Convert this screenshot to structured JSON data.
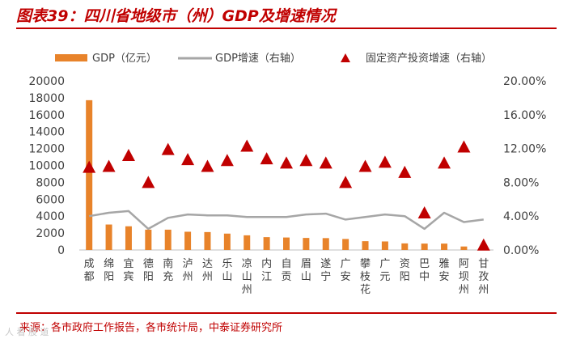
{
  "header": {
    "title": "图表39：四川省地级市（州）GDP及增速情况"
  },
  "footer": {
    "source": "来源：各市政府工作报告，各市统计局，中泰证券研究所",
    "watermark": "人 看 股 道"
  },
  "colors": {
    "bar": "#e8832a",
    "line": "#a6a6a6",
    "triangle": "#c00000",
    "accent": "#c00000",
    "axis": "#bfbfbf",
    "text": "#404040"
  },
  "chart_data": {
    "type": "bar",
    "categories": [
      "成都",
      "绵阳",
      "宜宾",
      "德阳",
      "南充",
      "泸州",
      "达州",
      "乐山",
      "凉山州",
      "内江",
      "自贡",
      "眉山",
      "遂宁",
      "广安",
      "攀枝花",
      "广元",
      "资阳",
      "巴中",
      "雅安",
      "阿坝州",
      "甘孜州"
    ],
    "series": [
      {
        "name": "GDP（亿元）",
        "type": "bar",
        "axis": "left",
        "values": [
          17717,
          3011,
          2802,
          2404,
          2401,
          2157,
          2118,
          1935,
          1733,
          1519,
          1475,
          1424,
          1403,
          1301,
          1040,
          1008,
          778,
          755,
          754,
          412,
          410
        ]
      },
      {
        "name": "GDP增速（右轴）",
        "type": "line",
        "axis": "right",
        "values": [
          4.0,
          4.4,
          4.6,
          2.5,
          3.8,
          4.2,
          4.1,
          4.1,
          3.9,
          3.9,
          3.9,
          4.2,
          4.3,
          3.6,
          3.9,
          4.2,
          4.0,
          2.5,
          4.4,
          3.3,
          3.6
        ]
      },
      {
        "name": "固定资产投资增速（右轴）",
        "type": "scatter",
        "axis": "right",
        "values": [
          9.8,
          9.9,
          11.2,
          8.0,
          11.9,
          10.7,
          9.9,
          10.6,
          12.3,
          10.8,
          10.3,
          10.6,
          10.3,
          8.0,
          9.9,
          10.4,
          9.2,
          4.4,
          10.3,
          12.2,
          0.6
        ]
      }
    ],
    "y_left": {
      "lim": [
        0,
        20000
      ],
      "ticks": [
        "0",
        "2000",
        "4000",
        "6000",
        "8000",
        "10000",
        "12000",
        "14000",
        "16000",
        "18000",
        "20000"
      ]
    },
    "y_right": {
      "lim": [
        0,
        20
      ],
      "ticks": [
        "0.00%",
        "4.00%",
        "8.00%",
        "12.00%",
        "16.00%",
        "20.00%"
      ]
    },
    "legend_position": "top",
    "grid": false
  }
}
